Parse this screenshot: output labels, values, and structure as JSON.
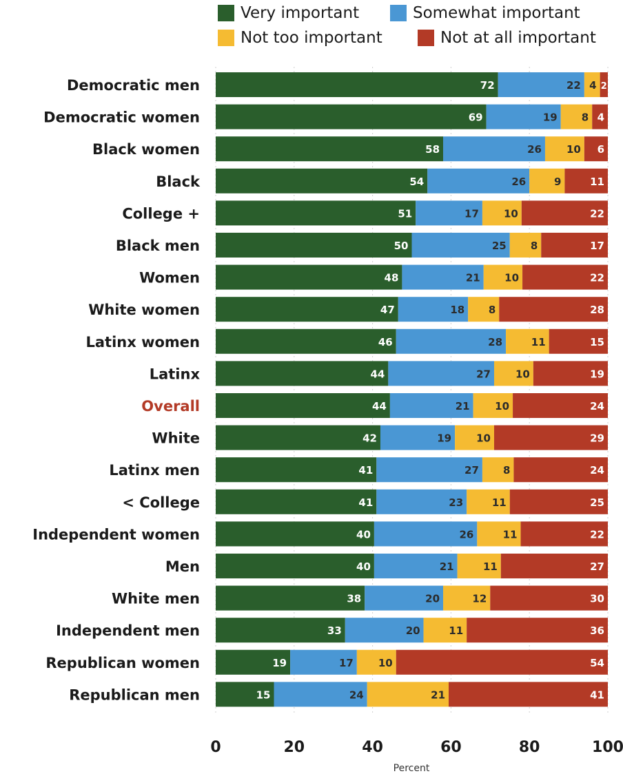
{
  "chart_data": {
    "type": "bar",
    "orientation": "horizontal",
    "stacked": true,
    "xlabel": "Percent",
    "xlim": [
      0,
      100
    ],
    "xticks": [
      "0",
      "20",
      "40",
      "60",
      "80",
      "100"
    ],
    "categories": [
      "Democratic men",
      "Democratic women",
      "Black women",
      "Black",
      "College +",
      "Black men",
      "Women",
      "White women",
      "Latinx women",
      "Latinx",
      "Overall",
      "White",
      "Latinx men",
      "< College",
      "Independent women",
      "Men",
      "White men",
      "Independent men",
      "Republican women",
      "Republican men"
    ],
    "highlight_category": "Overall",
    "series": [
      {
        "name": "Very important",
        "color": "#2a5e2c",
        "values": [
          72,
          69,
          58,
          54,
          51,
          50,
          48,
          47,
          46,
          44,
          44,
          42,
          41,
          41,
          40,
          40,
          38,
          33,
          19,
          15
        ]
      },
      {
        "name": "Somewhat important",
        "color": "#4a97d4",
        "values": [
          22,
          19,
          26,
          26,
          17,
          25,
          21,
          18,
          28,
          27,
          21,
          19,
          27,
          23,
          26,
          21,
          20,
          20,
          17,
          24
        ]
      },
      {
        "name": "Not too important",
        "color": "#f5bb32",
        "values": [
          4,
          8,
          10,
          9,
          10,
          8,
          10,
          8,
          11,
          10,
          10,
          10,
          8,
          11,
          11,
          11,
          12,
          11,
          10,
          21
        ]
      },
      {
        "name": "Not at all important",
        "color": "#b33a26",
        "values": [
          2,
          4,
          6,
          11,
          22,
          17,
          22,
          28,
          15,
          19,
          24,
          29,
          24,
          25,
          22,
          27,
          30,
          36,
          54,
          41
        ]
      }
    ],
    "grid": true,
    "legend_position": "top"
  },
  "colors": {
    "label_text": "#1a1a1a",
    "highlight_text": "#b33a26",
    "grid": "#cfcfcf"
  }
}
